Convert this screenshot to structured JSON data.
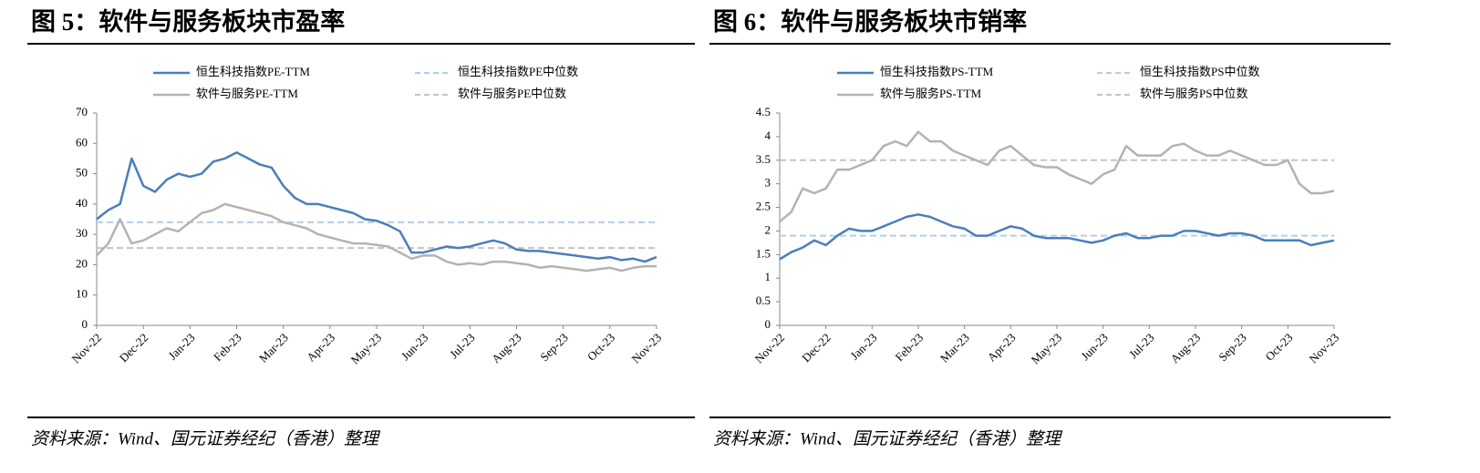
{
  "chart_data": [
    {
      "type": "line",
      "title": "图 5：软件与服务板块市盈率",
      "note": "资料来源：Wind、国元证券经纪（香港）整理",
      "categories": [
        "Nov-22",
        null,
        null,
        null,
        "Dec-22",
        null,
        null,
        null,
        "Jan-23",
        null,
        null,
        null,
        "Feb-23",
        null,
        null,
        null,
        "Mar-23",
        null,
        null,
        null,
        "Apr-23",
        null,
        null,
        null,
        "May-23",
        null,
        null,
        null,
        "Jun-23",
        null,
        null,
        null,
        "Jul-23",
        null,
        null,
        null,
        "Aug-23",
        null,
        null,
        null,
        "Sep-23",
        null,
        null,
        null,
        "Oct-23",
        null,
        null,
        null,
        "Nov-23"
      ],
      "series": [
        {
          "name": "恒生科技指数PE-TTM",
          "color": "#4a7ebb",
          "values": [
            35,
            38,
            40,
            55,
            46,
            44,
            48,
            50,
            49,
            50,
            54,
            55,
            57,
            55,
            53,
            52,
            46,
            42,
            40,
            40,
            39,
            38,
            37,
            35,
            34.5,
            33,
            31,
            24,
            24,
            25,
            26,
            25.5,
            26,
            27,
            28,
            27,
            25,
            24.5,
            24.5,
            24,
            23.5,
            23,
            22.5,
            22,
            22.5,
            21.5,
            22,
            21,
            22.5
          ]
        },
        {
          "name": "软件与服务PE-TTM",
          "color": "#b3b3b3",
          "values": [
            23,
            27,
            35,
            27,
            28,
            30,
            32,
            31,
            34,
            37,
            38,
            40,
            39,
            38,
            37,
            36,
            34,
            33,
            32,
            30,
            29,
            28,
            27,
            27,
            26.5,
            26,
            24,
            22,
            23,
            23,
            21,
            20,
            20.5,
            20,
            21,
            21,
            20.5,
            20,
            19,
            19.5,
            19,
            18.5,
            18,
            18.5,
            19,
            18,
            19,
            19.5,
            19.5
          ]
        }
      ],
      "reference_lines": [
        {
          "name": "恒生科技指数PE中位数",
          "color": "#b4cde8",
          "value": 34
        },
        {
          "name": "软件与服务PE中位数",
          "color": "#c4c4c4",
          "value": 25.5
        }
      ],
      "ylim": [
        0,
        70
      ],
      "yticks": [
        0,
        10,
        20,
        30,
        40,
        50,
        60,
        70
      ],
      "grid": false
    },
    {
      "type": "line",
      "title": "图 6：软件与服务板块市销率",
      "note": "资料来源：Wind、国元证券经纪（香港）整理",
      "categories": [
        "Nov-22",
        null,
        null,
        null,
        "Dec-22",
        null,
        null,
        null,
        "Jan-23",
        null,
        null,
        null,
        "Feb-23",
        null,
        null,
        null,
        "Mar-23",
        null,
        null,
        null,
        "Apr-23",
        null,
        null,
        null,
        "May-23",
        null,
        null,
        null,
        "Jun-23",
        null,
        null,
        null,
        "Jul-23",
        null,
        null,
        null,
        "Aug-23",
        null,
        null,
        null,
        "Sep-23",
        null,
        null,
        null,
        "Oct-23",
        null,
        null,
        null,
        "Nov-23"
      ],
      "series": [
        {
          "name": "恒生科技指数PS-TTM",
          "color": "#4a7ebb",
          "values": [
            1.4,
            1.55,
            1.65,
            1.8,
            1.7,
            1.9,
            2.05,
            2.0,
            2.0,
            2.1,
            2.2,
            2.3,
            2.35,
            2.3,
            2.2,
            2.1,
            2.05,
            1.9,
            1.9,
            2.0,
            2.1,
            2.05,
            1.9,
            1.85,
            1.85,
            1.85,
            1.8,
            1.75,
            1.8,
            1.9,
            1.95,
            1.85,
            1.85,
            1.9,
            1.9,
            2.0,
            2.0,
            1.95,
            1.9,
            1.95,
            1.95,
            1.9,
            1.8,
            1.8,
            1.8,
            1.8,
            1.7,
            1.75,
            1.8
          ]
        },
        {
          "name": "软件与服务PS-TTM",
          "color": "#b3b3b3",
          "values": [
            2.2,
            2.4,
            2.9,
            2.8,
            2.9,
            3.3,
            3.3,
            3.4,
            3.5,
            3.8,
            3.9,
            3.8,
            4.1,
            3.9,
            3.9,
            3.7,
            3.6,
            3.5,
            3.4,
            3.7,
            3.8,
            3.6,
            3.4,
            3.35,
            3.35,
            3.2,
            3.1,
            3.0,
            3.2,
            3.3,
            3.8,
            3.6,
            3.6,
            3.6,
            3.8,
            3.85,
            3.7,
            3.6,
            3.6,
            3.7,
            3.6,
            3.5,
            3.4,
            3.4,
            3.5,
            3.0,
            2.8,
            2.8,
            2.85
          ]
        }
      ],
      "reference_lines": [
        {
          "name": "恒生科技指数PS中位数",
          "color": "#b4cde8",
          "value": 1.9
        },
        {
          "name": "软件与服务PS中位数",
          "color": "#c4c4c4",
          "value": 3.5
        }
      ],
      "ylim": [
        0,
        4.5
      ],
      "yticks": [
        0,
        0.5,
        1,
        1.5,
        2,
        2.5,
        3,
        3.5,
        4,
        4.5
      ],
      "grid": false
    }
  ]
}
